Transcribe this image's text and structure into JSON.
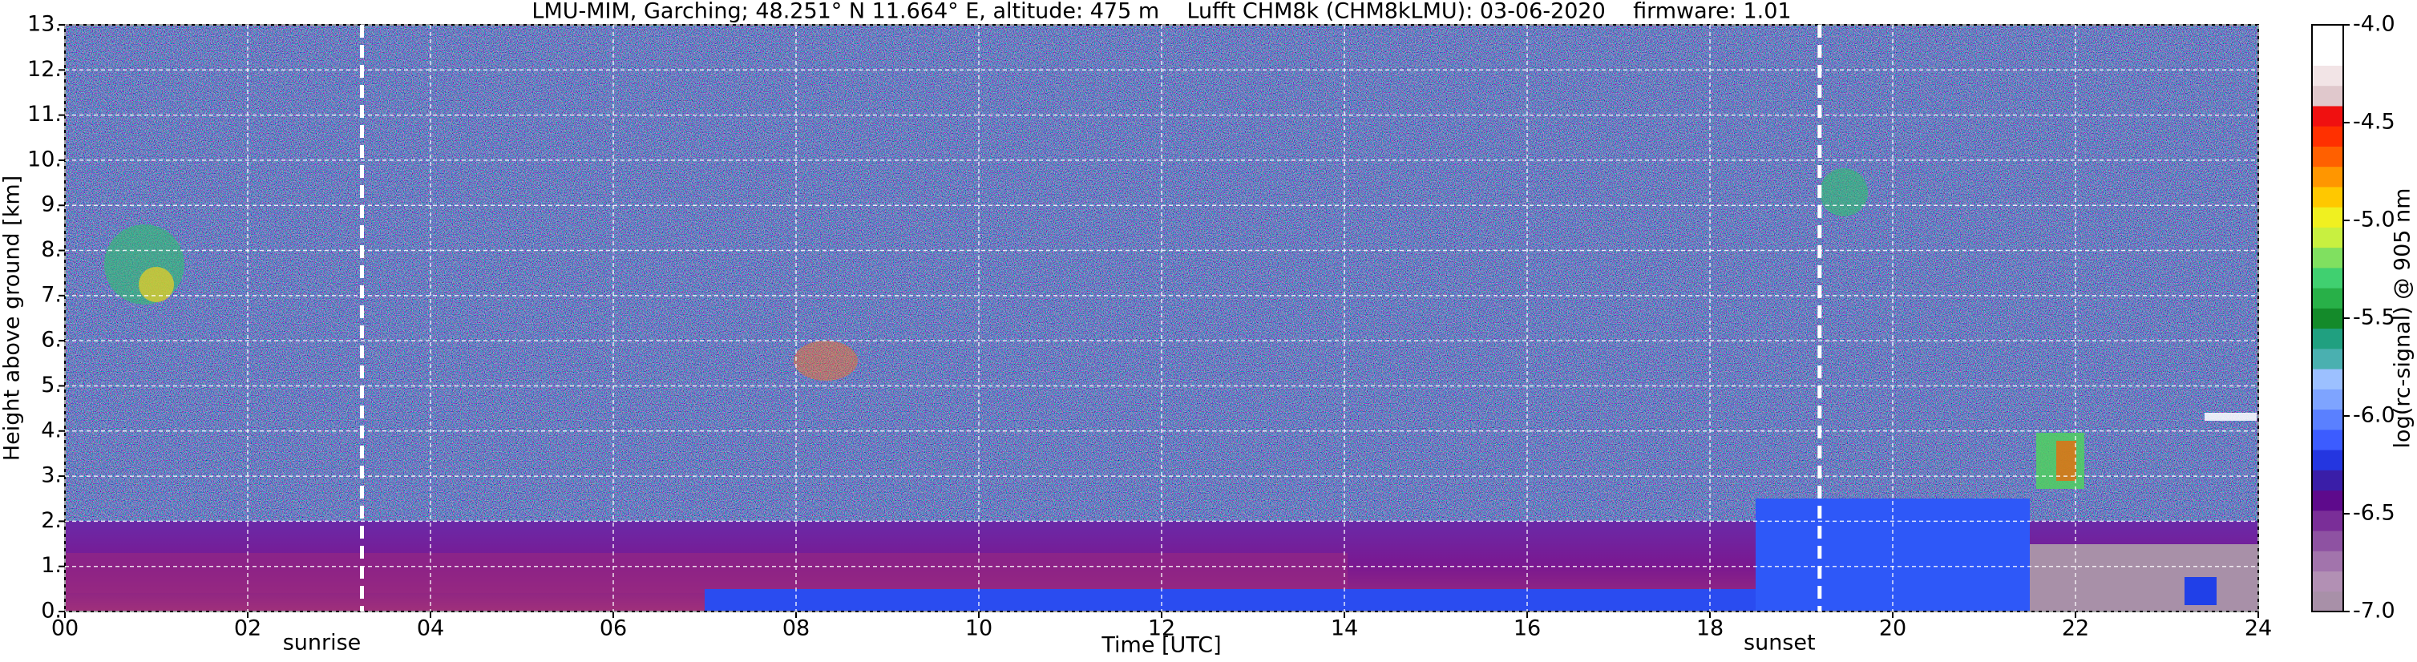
{
  "chart_data": {
    "type": "heatmap",
    "title": "LMU-MIM, Garching; 48.251° N 11.664° E, altitude: 475 m    Lufft CHM8k (CHM8kLMU): 03-06-2020    firmware: 1.01",
    "xlabel": "Time [UTC]",
    "ylabel": "Height above ground [km]",
    "xlim": [
      0,
      24
    ],
    "ylim": [
      0,
      13
    ],
    "xticks": [
      {
        "value": 0,
        "label": "00"
      },
      {
        "value": 2,
        "label": "02"
      },
      {
        "value": 4,
        "label": "04"
      },
      {
        "value": 6,
        "label": "06"
      },
      {
        "value": 8,
        "label": "08"
      },
      {
        "value": 10,
        "label": "10"
      },
      {
        "value": 12,
        "label": "12"
      },
      {
        "value": 14,
        "label": "14"
      },
      {
        "value": 16,
        "label": "16"
      },
      {
        "value": 18,
        "label": "18"
      },
      {
        "value": 20,
        "label": "20"
      },
      {
        "value": 22,
        "label": "22"
      },
      {
        "value": 24,
        "label": "24"
      }
    ],
    "yticks": [
      {
        "value": 0,
        "label": "0."
      },
      {
        "value": 1,
        "label": "1."
      },
      {
        "value": 2,
        "label": "2."
      },
      {
        "value": 3,
        "label": "3."
      },
      {
        "value": 4,
        "label": "4."
      },
      {
        "value": 5,
        "label": "5."
      },
      {
        "value": 6,
        "label": "6."
      },
      {
        "value": 7,
        "label": "7."
      },
      {
        "value": 8,
        "label": "8."
      },
      {
        "value": 9,
        "label": "9."
      },
      {
        "value": 10,
        "label": "10."
      },
      {
        "value": 11,
        "label": "11."
      },
      {
        "value": 12,
        "label": "12."
      },
      {
        "value": 13,
        "label": "13."
      }
    ],
    "grid": true,
    "annotations": [
      {
        "text": "sunrise",
        "x": 3.25
      },
      {
        "text": "sunset",
        "x": 19.2
      }
    ],
    "colorbar_label": "log(rc-signal) @ 905 nm",
    "clim": [
      -7,
      -4
    ],
    "cticks": [
      {
        "value": -7,
        "label": "-7.0"
      },
      {
        "value": -6.5,
        "label": "-6.5"
      },
      {
        "value": -6,
        "label": "-6.0"
      },
      {
        "value": -5.5,
        "label": "-5.5"
      },
      {
        "value": -5,
        "label": "-5.0"
      },
      {
        "value": -4.5,
        "label": "-4.5"
      },
      {
        "value": -4,
        "label": "-4.0"
      }
    ],
    "colorbar_colors": [
      "#a890a8",
      "#b290b4",
      "#a274ac",
      "#8e52a2",
      "#7a2e98",
      "#5e0a8c",
      "#3a1ea8",
      "#2436e0",
      "#3c5cff",
      "#5a80ff",
      "#7ea4ff",
      "#9cc0ff",
      "#4ab0b0",
      "#20a080",
      "#148a2a",
      "#28b048",
      "#40d070",
      "#80e060",
      "#c8f040",
      "#f0f020",
      "#ffc800",
      "#ff9600",
      "#ff6000",
      "#ff3000",
      "#f01010",
      "#e0c8cc",
      "#f2e4e6",
      "#ffffff",
      "#ffffff"
    ]
  }
}
